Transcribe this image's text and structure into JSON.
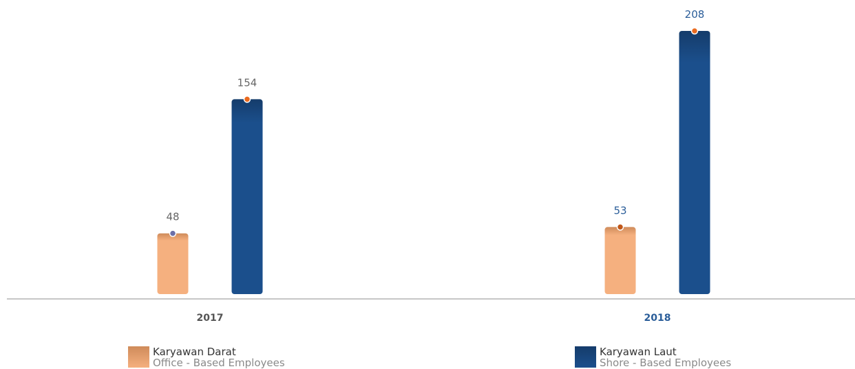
{
  "chart_data": {
    "type": "bar",
    "categories": [
      "2017",
      "2018"
    ],
    "series": [
      {
        "name": "Karyawan Darat",
        "subname": "Office - Based Employees",
        "values": [
          48,
          53
        ],
        "color": "#f5b07f",
        "color_top": "#cf8b5a"
      },
      {
        "name": "Karyawan Laut",
        "subname": "Shore - Based Employees",
        "values": [
          154,
          208
        ],
        "color": "#1b4f8c",
        "color_top": "#153c6b"
      }
    ],
    "ylim": [
      0,
      208
    ],
    "grid": false,
    "legend_position": "bottom",
    "category_label_colors": [
      "#555555",
      "#2a5d99"
    ],
    "value_label_colors": [
      [
        "#666666",
        "#666666"
      ],
      [
        "#2a5d99",
        "#2a5d99"
      ]
    ],
    "marker_colors": [
      [
        "#6b6fa8",
        "#ea6a1f"
      ],
      [
        "#c0581a",
        "#ea6a1f"
      ]
    ],
    "xlabel": "",
    "ylabel": ""
  }
}
